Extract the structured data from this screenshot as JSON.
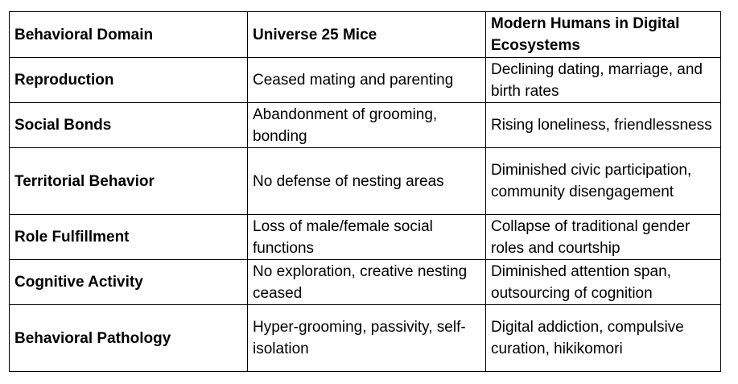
{
  "table": {
    "headers": [
      "Behavioral Domain",
      "Universe 25 Mice",
      "Modern Humans in Digital Ecosystems"
    ],
    "rows": [
      {
        "domain": "Reproduction",
        "mice": "Ceased mating and parenting",
        "humans": "Declining dating, marriage, and birth rates"
      },
      {
        "domain": "Social Bonds",
        "mice": "Abandonment of grooming, bonding",
        "humans": "Rising loneliness, friendlessness"
      },
      {
        "domain": "Territorial Behavior",
        "mice": "No defense of nesting areas",
        "humans": "Diminished civic participation, community disengagement"
      },
      {
        "domain": "Role Fulfillment",
        "mice": "Loss of male/female social functions",
        "humans": "Collapse of traditional gender roles and courtship"
      },
      {
        "domain": "Cognitive Activity",
        "mice": "No exploration, creative nesting ceased",
        "humans": "Diminished attention span, outsourcing of cognition"
      },
      {
        "domain": "Behavioral Pathology",
        "mice": "Hyper-grooming, passivity, self-isolation",
        "humans": "Digital addiction, compulsive curation, hikikomori"
      }
    ]
  }
}
